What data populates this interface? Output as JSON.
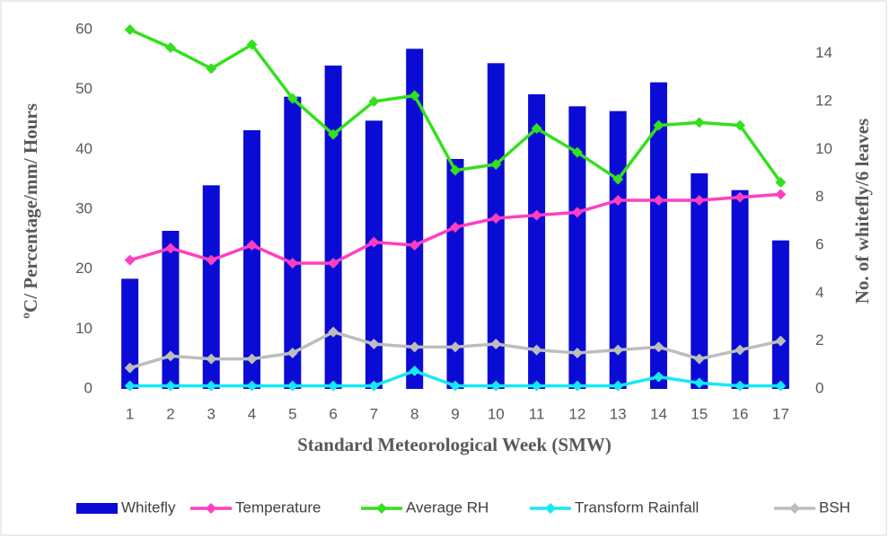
{
  "chart_data": {
    "type": "combo",
    "x_label": "Standard Meteorological Week (SMW)",
    "y_label": "ºC/ Percentage/mm/ Hours",
    "y2_label": "No. of whitefly/6 leaves",
    "categories": [
      "1",
      "2",
      "3",
      "4",
      "5",
      "6",
      "7",
      "8",
      "9",
      "10",
      "11",
      "12",
      "13",
      "14",
      "15",
      "16",
      "17"
    ],
    "ylim": [
      0,
      60
    ],
    "yticks": [
      0,
      10,
      20,
      30,
      40,
      50,
      60
    ],
    "y2lim": [
      0,
      15
    ],
    "y2ticks": [
      0,
      2,
      4,
      6,
      8,
      10,
      12,
      14
    ],
    "series": [
      {
        "name": "Whitefly",
        "type": "bar",
        "axis": "y2",
        "color": "#0b0bd6",
        "values": [
          4.6,
          6.6,
          8.5,
          10.8,
          12.2,
          13.5,
          11.2,
          14.2,
          9.6,
          13.6,
          12.3,
          11.8,
          11.6,
          12.8,
          9.0,
          8.3,
          6.2
        ]
      },
      {
        "name": "Temperature",
        "type": "line",
        "color": "#ff3fbf",
        "values": [
          21.5,
          23.5,
          21.5,
          24,
          21,
          21,
          24.5,
          24,
          27,
          28.5,
          29,
          29.5,
          31.5,
          31.5,
          31.5,
          32,
          32.5
        ]
      },
      {
        "name": "Average RH",
        "type": "line",
        "color": "#33e01c",
        "values": [
          60,
          57,
          53.5,
          57.5,
          48.5,
          42.5,
          48,
          49,
          36.5,
          37.5,
          43.5,
          39.5,
          35,
          44,
          44.5,
          44,
          34.5
        ]
      },
      {
        "name": "Transform Rainfall",
        "type": "line",
        "color": "#16e8f6",
        "values": [
          0.5,
          0.5,
          0.5,
          0.5,
          0.5,
          0.5,
          0.5,
          3,
          0.5,
          0.5,
          0.5,
          0.5,
          0.5,
          2,
          1,
          0.5,
          0.5
        ]
      },
      {
        "name": "BSH",
        "type": "line",
        "color": "#bdbdbd",
        "values": [
          3.5,
          5.5,
          5,
          5,
          6,
          9.5,
          7.5,
          7,
          7,
          7.5,
          6.5,
          6,
          6.5,
          7,
          5,
          6.5,
          8
        ]
      }
    ]
  }
}
